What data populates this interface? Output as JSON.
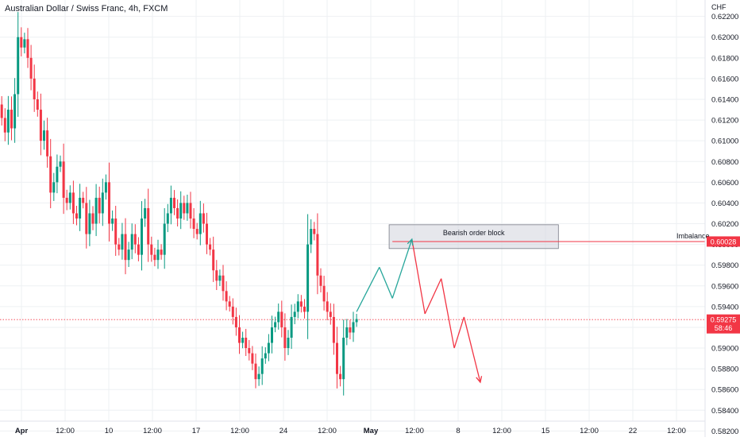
{
  "header": {
    "title": "Australian Dollar / Swiss Franc, 4h, FXCM"
  },
  "colors": {
    "up": "#089981",
    "down": "#f23645",
    "grid": "#eef0f3",
    "text": "#131722",
    "block_fill": "#d1d4dc",
    "path_up": "#26a69a",
    "path_down": "#f23645"
  },
  "chart_data": {
    "type": "candlestick",
    "symbol": "AUDCHF",
    "title": "Australian Dollar / Swiss Franc, 4h, FXCM",
    "currency_label": "CHF",
    "ylim": [
      0.5818,
      0.6232
    ],
    "y_ticks": [
      "0.62200",
      "0.62000",
      "0.61800",
      "0.61600",
      "0.61400",
      "0.61200",
      "0.61000",
      "0.60800",
      "0.60600",
      "0.60400",
      "0.60200",
      "0.60000",
      "0.59800",
      "0.59600",
      "0.59400",
      "0.59200",
      "0.59000",
      "0.58800",
      "0.58600",
      "0.58400",
      "0.58200"
    ],
    "x_ticks": [
      "Apr",
      "12:00",
      "10",
      "12:00",
      "17",
      "12:00",
      "24",
      "12:00",
      "May",
      "12:00",
      "8",
      "12:00",
      "15",
      "12:00",
      "22",
      "12:00"
    ],
    "bold_ticks": [
      "Apr",
      "May"
    ],
    "bar_interval": "4h",
    "closes": [
      0.6122,
      0.6108,
      0.613,
      0.6112,
      0.6145,
      0.62,
      0.619,
      0.6198,
      0.618,
      0.616,
      0.614,
      0.613,
      0.61,
      0.611,
      0.6085,
      0.605,
      0.606,
      0.6075,
      0.608,
      0.6045,
      0.604,
      0.605,
      0.603,
      0.6025,
      0.6045,
      0.604,
      0.601,
      0.603,
      0.602,
      0.6045,
      0.603,
      0.605,
      0.606,
      0.602,
      0.6025,
      0.6,
      0.5995,
      0.601,
      0.5985,
      0.5995,
      0.601,
      0.6,
      0.599,
      0.6025,
      0.6035,
      0.6,
      0.599,
      0.5985,
      0.5995,
      0.599,
      0.602,
      0.603,
      0.6045,
      0.6035,
      0.6025,
      0.604,
      0.603,
      0.604,
      0.6025,
      0.6015,
      0.601,
      0.603,
      0.602,
      0.6,
      0.5995,
      0.5975,
      0.5965,
      0.597,
      0.5955,
      0.5945,
      0.594,
      0.593,
      0.592,
      0.5905,
      0.591,
      0.59,
      0.5895,
      0.5885,
      0.587,
      0.5875,
      0.589,
      0.5895,
      0.5905,
      0.592,
      0.5925,
      0.5935,
      0.592,
      0.59,
      0.591,
      0.593,
      0.5935,
      0.5945,
      0.594,
      0.5935,
      0.6,
      0.6015,
      0.601,
      0.597,
      0.596,
      0.5945,
      0.5935,
      0.593,
      0.5905,
      0.5875,
      0.587,
      0.591,
      0.592,
      0.5915,
      0.5925,
      0.5928
    ],
    "start_open": 0.6135,
    "current_price": 0.59275,
    "current_price_label": "0.59275",
    "countdown_label": "58:46",
    "imbalance": {
      "label": "Imbalance",
      "price": 0.60028,
      "price_label": "0.60028"
    },
    "order_block": {
      "label": "Bearish order block",
      "top": 0.6019,
      "bottom": 0.5996
    },
    "projection": [
      {
        "bar": 109,
        "price": 0.5935
      },
      {
        "bar": 116,
        "price": 0.5978
      },
      {
        "bar": 120,
        "price": 0.5948
      },
      {
        "bar": 126,
        "price": 0.6005
      },
      {
        "bar": 130,
        "price": 0.5933
      },
      {
        "bar": 135,
        "price": 0.5967
      },
      {
        "bar": 139,
        "price": 0.59
      },
      {
        "bar": 142,
        "price": 0.593
      },
      {
        "bar": 147,
        "price": 0.5867
      }
    ]
  }
}
